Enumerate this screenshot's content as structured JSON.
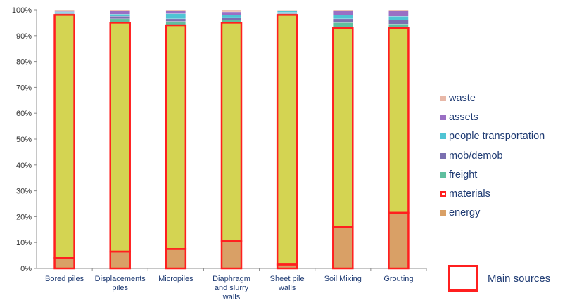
{
  "chart_data": {
    "type": "bar",
    "stacked": true,
    "categories": [
      "Bored piles",
      "Displacements piles",
      "Micropiles",
      "Diaphragm and slurry walls",
      "Sheet pile walls",
      "Soil Mixing",
      "Grouting"
    ],
    "category_lines": [
      [
        "Bored piles"
      ],
      [
        "Displacements",
        "piles"
      ],
      [
        "Micropiles"
      ],
      [
        "Diaphragm",
        "and slurry",
        "walls"
      ],
      [
        "Sheet pile",
        "walls"
      ],
      [
        "Soil Mixing"
      ],
      [
        "Grouting"
      ]
    ],
    "series": [
      {
        "name": "energy",
        "color": "#d9a066",
        "values": [
          4,
          6.5,
          7.5,
          10.5,
          1.5,
          16,
          21.5
        ]
      },
      {
        "name": "materials",
        "color": "#d4d452",
        "values": [
          94,
          88.5,
          86.5,
          84.5,
          96.5,
          77,
          71.5
        ]
      },
      {
        "name": "freight",
        "color": "#5fbf9f",
        "values": [
          0.5,
          1.5,
          1.5,
          1,
          0.5,
          2,
          1.5
        ]
      },
      {
        "name": "mob/demob",
        "color": "#7a6fb0",
        "values": [
          0.5,
          1,
          1,
          1,
          0.5,
          1.5,
          1.5
        ]
      },
      {
        "name": "people transportation",
        "color": "#4fc4d4",
        "values": [
          0.3,
          0.8,
          2,
          1,
          0.5,
          1.5,
          1.5
        ]
      },
      {
        "name": "assets",
        "color": "#9a6fc4",
        "values": [
          0.4,
          1.2,
          1,
          1.2,
          0.3,
          1.5,
          2
        ]
      },
      {
        "name": "waste",
        "color": "#e8b8a8",
        "values": [
          0.3,
          0.5,
          0.5,
          0.8,
          0.2,
          0.5,
          0.5
        ]
      }
    ],
    "highlighted_series": [
      "energy",
      "materials"
    ],
    "highlight_color": "#ff1f1f",
    "y_ticks": [
      "0%",
      "10%",
      "20%",
      "30%",
      "40%",
      "50%",
      "60%",
      "70%",
      "80%",
      "90%",
      "100%"
    ],
    "ylim": [
      0,
      100
    ],
    "grid": false,
    "legend_position": "right"
  },
  "legend": {
    "items": [
      {
        "label": "waste",
        "color": "#e8b8a8",
        "highlight": false
      },
      {
        "label": "assets",
        "color": "#9a6fc4",
        "highlight": false
      },
      {
        "label": "people transportation",
        "color": "#4fc4d4",
        "highlight": false
      },
      {
        "label": "mob/demob",
        "color": "#7a6fb0",
        "highlight": false
      },
      {
        "label": "freight",
        "color": "#5fbf9f",
        "highlight": false
      },
      {
        "label": "materials",
        "color": "#ff1f1f",
        "highlight": true
      },
      {
        "label": "energy",
        "color": "#d9a066",
        "highlight": false
      }
    ]
  },
  "main_sources": {
    "label": "Main sources",
    "color": "#ff1f1f"
  }
}
